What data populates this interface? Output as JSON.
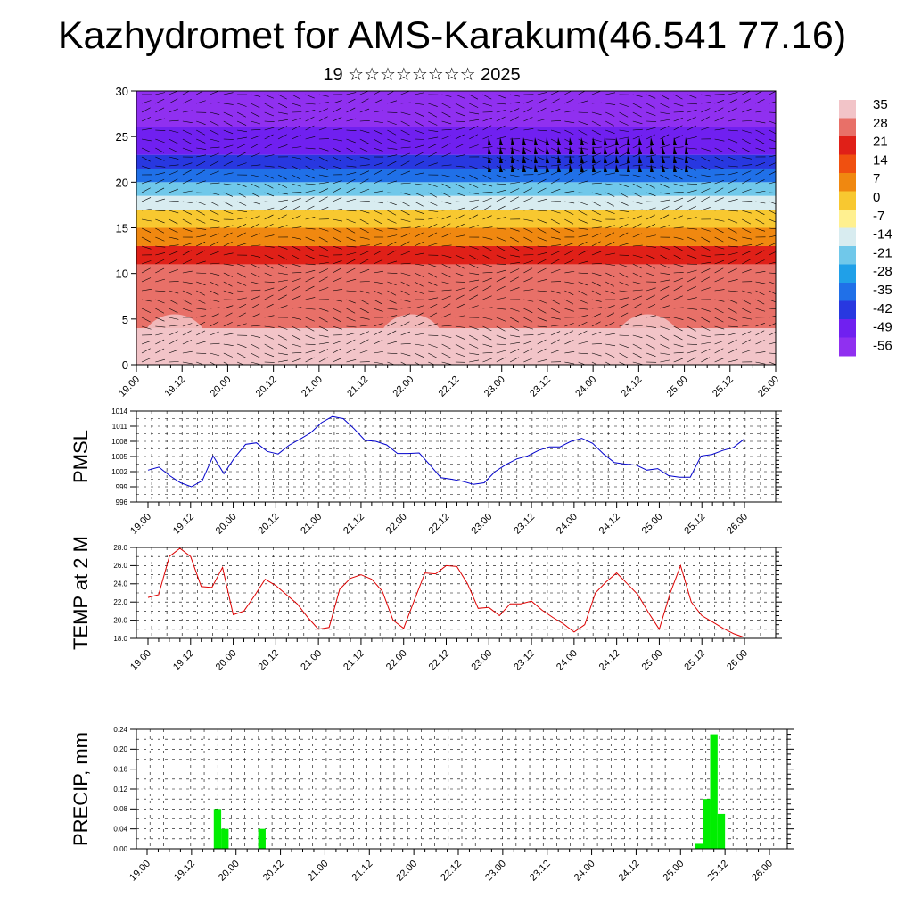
{
  "title": "Kazhydromet for AMS-Karakum(46.541 77.16)",
  "subtitle": "19 ☆☆☆☆☆☆☆☆ 2025",
  "time_labels": [
    "19.00",
    "19.12",
    "20.00",
    "20.12",
    "21.00",
    "21.12",
    "22.00",
    "22.12",
    "23.00",
    "23.12",
    "24.00",
    "24.12",
    "25.00",
    "25.12",
    "26.00"
  ],
  "colors": {
    "pmsl_line": "#0000cc",
    "temp_line": "#dd0000",
    "precip_bar": "#00ee00",
    "colorbar": [
      "#f2c4c8",
      "#e87068",
      "#e02018",
      "#f05010",
      "#f08810",
      "#f8c830",
      "#fff090",
      "#d8ecf0",
      "#70c8ea",
      "#20a0e8",
      "#2070e8",
      "#2838e0",
      "#7020f0",
      "#9030f0"
    ]
  },
  "chart_data": [
    {
      "type": "heatmap",
      "title": "",
      "ylim": [
        0,
        30
      ],
      "y_ticks": [
        0,
        5,
        10,
        15,
        20,
        25,
        30
      ],
      "x_tick_labels": [
        "19.00",
        "19.12",
        "20.00",
        "20.12",
        "21.00",
        "21.12",
        "22.00",
        "22.12",
        "23.00",
        "23.12",
        "24.00",
        "24.12",
        "25.00",
        "25.12",
        "26.00"
      ],
      "colorbar_labels": [
        "35",
        "28",
        "21",
        "14",
        "7",
        "0",
        "-7",
        "-14",
        "-21",
        "-28",
        "-35",
        "-42",
        "-49",
        "-56"
      ],
      "bands": [
        {
          "from": 0,
          "to": 4,
          "value": 35
        },
        {
          "from": 4,
          "to": 11,
          "value": 28
        },
        {
          "from": 11,
          "to": 13,
          "value": 21
        },
        {
          "from": 13,
          "to": 15,
          "value": 7
        },
        {
          "from": 15,
          "to": 17,
          "value": 0
        },
        {
          "from": 17,
          "to": 18.5,
          "value": -14
        },
        {
          "from": 18.5,
          "to": 20,
          "value": -21
        },
        {
          "from": 20,
          "to": 21.5,
          "value": -35
        },
        {
          "from": 21.5,
          "to": 23,
          "value": -42
        },
        {
          "from": 23,
          "to": 26,
          "value": -49
        },
        {
          "from": 26,
          "to": 30,
          "value": -56
        }
      ]
    },
    {
      "type": "line",
      "ylabel": "PMSL",
      "ylim": [
        996,
        1014
      ],
      "y_ticks": [
        "996",
        "999",
        "1002",
        "1005",
        "1008",
        "1011",
        "1014"
      ],
      "x_tick_labels": [
        "19.00",
        "19.12",
        "20.00",
        "20.12",
        "21.00",
        "21.12",
        "22.00",
        "22.12",
        "23.00",
        "23.12",
        "24.00",
        "24.12",
        "25.00",
        "25.12",
        "26.00"
      ],
      "series": [
        {
          "values": [
            1002.3,
            1002.9,
            1001.2,
            999.8,
            999.0,
            1000.2,
            1005.1,
            1001.6,
            1004.8,
            1007.4,
            1007.7,
            1006.0,
            1005.5,
            1007.2,
            1008.4,
            1009.7,
            1011.7,
            1012.9,
            1012.5,
            1010.5,
            1008.2,
            1008.0,
            1007.3,
            1005.6,
            1005.6,
            1005.7,
            1003.3,
            1000.8,
            1000.5,
            1000.1,
            999.5,
            999.8,
            1002.0,
            1003.4,
            1004.5,
            1005.1,
            1006.2,
            1006.9,
            1006.9,
            1008.0,
            1008.6,
            1007.6,
            1005.5,
            1003.8,
            1003.5,
            1003.3,
            1002.3,
            1002.6,
            1001.2,
            1000.9,
            1000.9,
            1005.1,
            1005.4,
            1006.2,
            1006.8,
            1008.5
          ]
        }
      ]
    },
    {
      "type": "line",
      "ylabel": "TEMP at 2 M",
      "ylim": [
        18,
        28
      ],
      "y_ticks": [
        "18.0",
        "20.0",
        "22.0",
        "24.0",
        "26.0",
        "28.0"
      ],
      "x_tick_labels": [
        "19.00",
        "19.12",
        "20.00",
        "20.12",
        "21.00",
        "21.12",
        "22.00",
        "22.12",
        "23.00",
        "23.12",
        "24.00",
        "24.12",
        "25.00",
        "25.12",
        "26.00"
      ],
      "series": [
        {
          "values": [
            22.5,
            22.8,
            27.0,
            27.9,
            27.0,
            23.7,
            23.6,
            25.8,
            20.6,
            21.0,
            22.7,
            24.5,
            23.8,
            22.8,
            21.8,
            20.3,
            19.0,
            19.2,
            23.4,
            24.6,
            25.0,
            24.5,
            23.2,
            20.0,
            19.1,
            22.2,
            25.2,
            25.1,
            26.0,
            25.9,
            24.0,
            21.3,
            21.4,
            20.5,
            21.8,
            21.8,
            22.1,
            21.1,
            20.3,
            19.6,
            18.7,
            19.5,
            23.0,
            24.2,
            25.2,
            24.0,
            22.8,
            20.8,
            19.0,
            22.9,
            26.0,
            22.0,
            20.5,
            19.8,
            19.1,
            18.5,
            18.1
          ]
        }
      ]
    },
    {
      "type": "bar",
      "ylabel": "PRECIP, mm",
      "ylim": [
        0,
        0.24
      ],
      "y_ticks": [
        "0.00",
        "0.04",
        "0.08",
        "0.12",
        "0.16",
        "0.20",
        "0.24"
      ],
      "x_tick_labels": [
        "19.00",
        "19.12",
        "20.00",
        "20.12",
        "21.00",
        "21.12",
        "22.00",
        "22.12",
        "23.00",
        "23.12",
        "24.00",
        "24.12",
        "25.00",
        "25.12",
        "26.00"
      ],
      "bars": [
        {
          "step": 9,
          "value": 0.08
        },
        {
          "step": 10,
          "value": 0.04
        },
        {
          "step": 15,
          "value": 0.04
        },
        {
          "step": 74,
          "value": 0.01
        },
        {
          "step": 75,
          "value": 0.1
        },
        {
          "step": 76,
          "value": 0.23
        },
        {
          "step": 77,
          "value": 0.07
        }
      ]
    }
  ]
}
